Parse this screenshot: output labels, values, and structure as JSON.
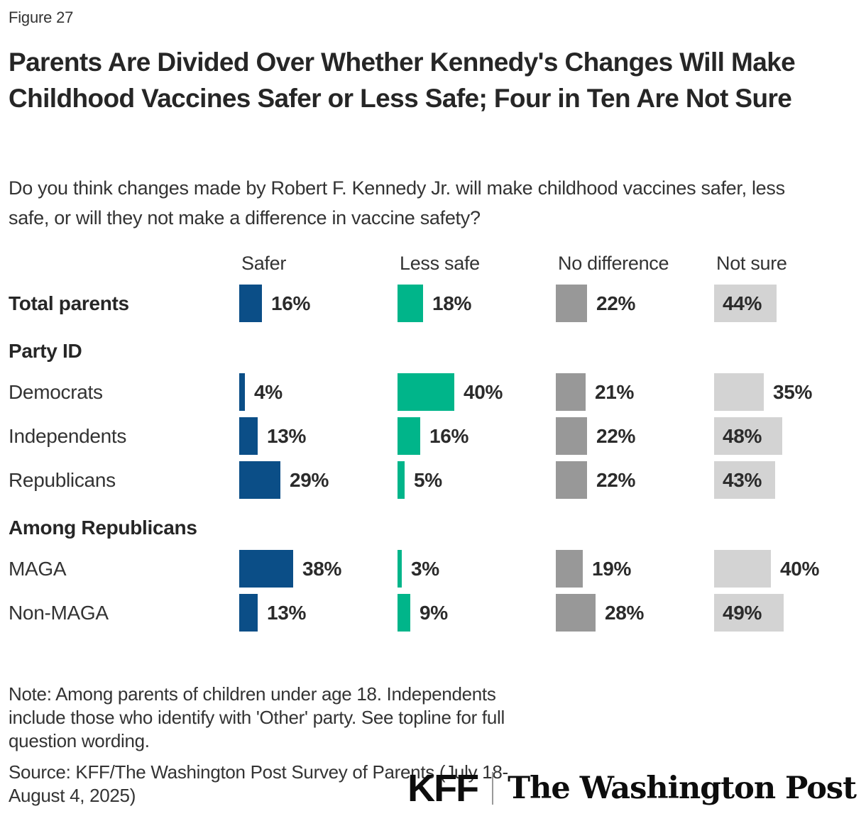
{
  "figure_label": "Figure 27",
  "title": "Parents Are Divided Over Whether Kennedy's Changes Will Make Childhood Vaccines Safer or Less Safe; Four in Ten Are Not Sure",
  "subtitle": "Do you think changes made by Robert F. Kennedy Jr. will make childhood vaccines safer, less safe, or will they not make a difference in vaccine safety?",
  "chart_data": {
    "type": "bar",
    "orientation": "horizontal",
    "unit": "%",
    "value_labels": "shown",
    "axis_range": [
      0,
      100
    ],
    "grid": false,
    "legend_position": "column-headers-top",
    "columns": [
      "Safer",
      "Less safe",
      "No difference",
      "Not sure"
    ],
    "column_colors": [
      "#0b4e87",
      "#00b58a",
      "#989898",
      "#d3d3d3"
    ],
    "rows": [
      {
        "type": "data",
        "label": "Total parents",
        "emphasis": true,
        "values": [
          16,
          18,
          22,
          44
        ]
      },
      {
        "type": "section",
        "label": "Party ID"
      },
      {
        "type": "data",
        "label": "Democrats",
        "emphasis": false,
        "values": [
          4,
          40,
          21,
          35
        ]
      },
      {
        "type": "data",
        "label": "Independents",
        "emphasis": false,
        "values": [
          13,
          16,
          22,
          48
        ]
      },
      {
        "type": "data",
        "label": "Republicans",
        "emphasis": false,
        "values": [
          29,
          5,
          22,
          43
        ]
      },
      {
        "type": "section",
        "label": "Among Republicans"
      },
      {
        "type": "data",
        "label": "MAGA",
        "emphasis": false,
        "values": [
          38,
          3,
          19,
          40
        ]
      },
      {
        "type": "data",
        "label": "Non-MAGA",
        "emphasis": false,
        "values": [
          13,
          9,
          28,
          49
        ]
      }
    ]
  },
  "note": "Note: Among parents of children under age 18. Independents include those who identify with 'Other' party. See topline for full question wording.",
  "source": "Source: KFF/The Washington Post Survey of Parents (July 18-August 4, 2025)",
  "logos": {
    "kff": "KFF",
    "wapo": "The Washington Post"
  }
}
